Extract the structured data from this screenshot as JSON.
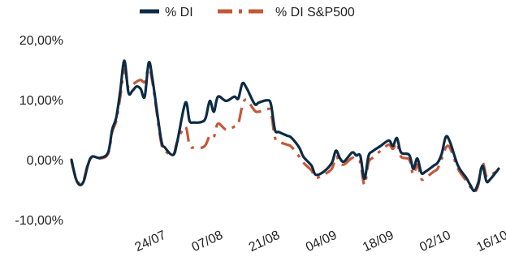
{
  "chart_data": {
    "type": "line",
    "legend_position": "top-center",
    "grid": false,
    "ylim": [
      -10,
      20
    ],
    "yticks": [
      {
        "value": 20,
        "label": "20,00%"
      },
      {
        "value": 10,
        "label": "10,00%"
      },
      {
        "value": 0,
        "label": "0,00%"
      },
      {
        "value": -10,
        "label": "-10,00%"
      }
    ],
    "xlim": [
      "2023-07-03",
      "2023-10-16"
    ],
    "xticks": [
      {
        "date": "2023-07-24",
        "label": "24/07"
      },
      {
        "date": "2023-08-07",
        "label": "07/08"
      },
      {
        "date": "2023-08-21",
        "label": "21/08"
      },
      {
        "date": "2023-09-04",
        "label": "04/09"
      },
      {
        "date": "2023-09-18",
        "label": "18/09"
      },
      {
        "date": "2023-10-02",
        "label": "02/10"
      },
      {
        "date": "2023-10-16",
        "label": "16/10"
      }
    ],
    "series": [
      {
        "name": "% DI",
        "color": "#0d2b45",
        "style": "solid",
        "points": [
          [
            "2023-07-03",
            0.0
          ],
          [
            "2023-07-04",
            -3.0
          ],
          [
            "2023-07-05",
            -4.2
          ],
          [
            "2023-07-06",
            -3.6
          ],
          [
            "2023-07-07",
            -1.0
          ],
          [
            "2023-07-08",
            0.5
          ],
          [
            "2023-07-10",
            0.3
          ],
          [
            "2023-07-12",
            1.2
          ],
          [
            "2023-07-13",
            5.0
          ],
          [
            "2023-07-14",
            7.0
          ],
          [
            "2023-07-15",
            11.5
          ],
          [
            "2023-07-16",
            16.5
          ],
          [
            "2023-07-17",
            11.2
          ],
          [
            "2023-07-18",
            11.5
          ],
          [
            "2023-07-19",
            12.2
          ],
          [
            "2023-07-20",
            11.8
          ],
          [
            "2023-07-21",
            10.5
          ],
          [
            "2023-07-22",
            16.2
          ],
          [
            "2023-07-23",
            13.0
          ],
          [
            "2023-07-25",
            3.5
          ],
          [
            "2023-07-26",
            2.0
          ],
          [
            "2023-07-28",
            0.8
          ],
          [
            "2023-07-29",
            3.0
          ],
          [
            "2023-07-31",
            9.5
          ],
          [
            "2023-08-01",
            6.5
          ],
          [
            "2023-08-02",
            6.2
          ],
          [
            "2023-08-04",
            6.3
          ],
          [
            "2023-08-05",
            7.0
          ],
          [
            "2023-08-06",
            9.8
          ],
          [
            "2023-08-07",
            8.0
          ],
          [
            "2023-08-08",
            10.5
          ],
          [
            "2023-08-10",
            9.8
          ],
          [
            "2023-08-12",
            10.5
          ],
          [
            "2023-08-13",
            10.2
          ],
          [
            "2023-08-14",
            12.7
          ],
          [
            "2023-08-15",
            12.0
          ],
          [
            "2023-08-17",
            9.3
          ],
          [
            "2023-08-18",
            9.5
          ],
          [
            "2023-08-20",
            9.9
          ],
          [
            "2023-08-21",
            9.3
          ],
          [
            "2023-08-22",
            5.0
          ],
          [
            "2023-08-23",
            4.6
          ],
          [
            "2023-08-25",
            4.0
          ],
          [
            "2023-08-26",
            3.7
          ],
          [
            "2023-08-28",
            2.0
          ],
          [
            "2023-08-29",
            0.5
          ],
          [
            "2023-08-31",
            -1.0
          ],
          [
            "2023-09-01",
            -2.5
          ],
          [
            "2023-09-03",
            -2.0
          ],
          [
            "2023-09-05",
            -0.5
          ],
          [
            "2023-09-06",
            1.5
          ],
          [
            "2023-09-07",
            0.2
          ],
          [
            "2023-09-08",
            -0.3
          ],
          [
            "2023-09-10",
            1.2
          ],
          [
            "2023-09-11",
            0.7
          ],
          [
            "2023-09-12",
            0.6
          ],
          [
            "2023-09-13",
            -3.2
          ],
          [
            "2023-09-14",
            0.6
          ],
          [
            "2023-09-15",
            1.4
          ],
          [
            "2023-09-17",
            2.3
          ],
          [
            "2023-09-19",
            3.2
          ],
          [
            "2023-09-20",
            2.3
          ],
          [
            "2023-09-21",
            3.6
          ],
          [
            "2023-09-22",
            1.2
          ],
          [
            "2023-09-24",
            0.8
          ],
          [
            "2023-09-25",
            -1.5
          ],
          [
            "2023-09-26",
            0.2
          ],
          [
            "2023-09-27",
            -2.2
          ],
          [
            "2023-09-28",
            -2.0
          ],
          [
            "2023-09-30",
            -1.0
          ],
          [
            "2023-10-01",
            -0.5
          ],
          [
            "2023-10-02",
            1.0
          ],
          [
            "2023-10-03",
            3.8
          ],
          [
            "2023-10-04",
            3.0
          ],
          [
            "2023-10-06",
            -1.0
          ],
          [
            "2023-10-08",
            -3.0
          ],
          [
            "2023-10-09",
            -4.2
          ],
          [
            "2023-10-10",
            -5.2
          ],
          [
            "2023-10-11",
            -3.8
          ],
          [
            "2023-10-12",
            -1.0
          ],
          [
            "2023-10-13",
            -3.6
          ],
          [
            "2023-10-14",
            -3.2
          ],
          [
            "2023-10-16",
            -1.5
          ]
        ]
      },
      {
        "name": "% DI S&P500",
        "color": "#c4583a",
        "style": "dash-dot",
        "points": [
          [
            "2023-07-03",
            -0.3
          ],
          [
            "2023-07-04",
            -2.8
          ],
          [
            "2023-07-05",
            -4.0
          ],
          [
            "2023-07-06",
            -3.4
          ],
          [
            "2023-07-07",
            -0.8
          ],
          [
            "2023-07-08",
            0.4
          ],
          [
            "2023-07-10",
            0.2
          ],
          [
            "2023-07-12",
            1.0
          ],
          [
            "2023-07-13",
            4.6
          ],
          [
            "2023-07-14",
            6.5
          ],
          [
            "2023-07-15",
            10.5
          ],
          [
            "2023-07-16",
            15.0
          ],
          [
            "2023-07-17",
            12.0
          ],
          [
            "2023-07-18",
            12.5
          ],
          [
            "2023-07-19",
            13.0
          ],
          [
            "2023-07-20",
            13.3
          ],
          [
            "2023-07-21",
            13.0
          ],
          [
            "2023-07-22",
            15.2
          ],
          [
            "2023-07-23",
            12.5
          ],
          [
            "2023-07-25",
            3.0
          ],
          [
            "2023-07-26",
            1.5
          ],
          [
            "2023-07-28",
            0.8
          ],
          [
            "2023-07-29",
            3.0
          ],
          [
            "2023-07-31",
            5.5
          ],
          [
            "2023-08-01",
            2.4
          ],
          [
            "2023-08-02",
            2.0
          ],
          [
            "2023-08-04",
            2.0
          ],
          [
            "2023-08-05",
            2.5
          ],
          [
            "2023-08-06",
            4.0
          ],
          [
            "2023-08-07",
            3.8
          ],
          [
            "2023-08-08",
            6.0
          ],
          [
            "2023-08-10",
            5.0
          ],
          [
            "2023-08-12",
            5.5
          ],
          [
            "2023-08-13",
            6.0
          ],
          [
            "2023-08-14",
            9.0
          ],
          [
            "2023-08-15",
            10.0
          ],
          [
            "2023-08-17",
            8.2
          ],
          [
            "2023-08-18",
            8.0
          ],
          [
            "2023-08-20",
            8.4
          ],
          [
            "2023-08-21",
            8.0
          ],
          [
            "2023-08-22",
            3.7
          ],
          [
            "2023-08-23",
            3.0
          ],
          [
            "2023-08-25",
            2.5
          ],
          [
            "2023-08-26",
            2.2
          ],
          [
            "2023-08-28",
            0.5
          ],
          [
            "2023-08-29",
            -0.5
          ],
          [
            "2023-08-31",
            -1.8
          ],
          [
            "2023-09-01",
            -3.0
          ],
          [
            "2023-09-03",
            -2.5
          ],
          [
            "2023-09-05",
            -1.5
          ],
          [
            "2023-09-06",
            0.5
          ],
          [
            "2023-09-07",
            -0.5
          ],
          [
            "2023-09-08",
            -0.8
          ],
          [
            "2023-09-10",
            0.3
          ],
          [
            "2023-09-11",
            -0.2
          ],
          [
            "2023-09-12",
            -0.5
          ],
          [
            "2023-09-13",
            -4.2
          ],
          [
            "2023-09-14",
            -0.5
          ],
          [
            "2023-09-15",
            0.3
          ],
          [
            "2023-09-17",
            1.5
          ],
          [
            "2023-09-19",
            2.5
          ],
          [
            "2023-09-20",
            1.8
          ],
          [
            "2023-09-21",
            2.8
          ],
          [
            "2023-09-22",
            0.5
          ],
          [
            "2023-09-24",
            0.0
          ],
          [
            "2023-09-25",
            -2.5
          ],
          [
            "2023-09-26",
            -0.8
          ],
          [
            "2023-09-27",
            -3.2
          ],
          [
            "2023-09-28",
            -3.0
          ],
          [
            "2023-09-30",
            -2.0
          ],
          [
            "2023-10-01",
            -1.5
          ],
          [
            "2023-10-02",
            0.2
          ],
          [
            "2023-10-03",
            2.0
          ],
          [
            "2023-10-04",
            2.0
          ],
          [
            "2023-10-06",
            -1.5
          ],
          [
            "2023-10-08",
            -3.5
          ],
          [
            "2023-10-09",
            -4.5
          ],
          [
            "2023-10-10",
            -5.4
          ],
          [
            "2023-10-11",
            -4.2
          ],
          [
            "2023-10-12",
            -0.5
          ],
          [
            "2023-10-13",
            -2.8
          ],
          [
            "2023-10-14",
            -2.5
          ],
          [
            "2023-10-16",
            -1.8
          ]
        ]
      }
    ]
  }
}
